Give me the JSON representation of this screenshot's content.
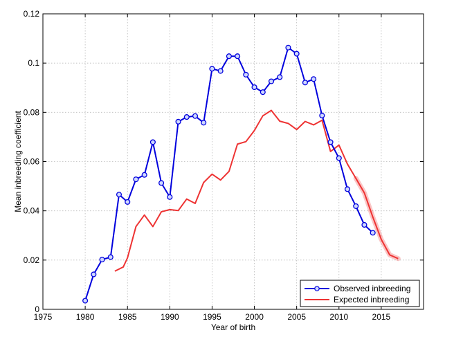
{
  "chart_data": {
    "type": "line",
    "xlabel": "Year of birth",
    "ylabel": "Mean inbreeding coefficient",
    "xlim": [
      1975,
      2020
    ],
    "ylim": [
      0,
      0.12
    ],
    "xticks": [
      1975,
      1980,
      1985,
      1990,
      1995,
      2000,
      2005,
      2010,
      2015
    ],
    "yticks": [
      0,
      0.02,
      0.04,
      0.06,
      0.08,
      0.1,
      0.12
    ],
    "ytick_labels": [
      "0",
      "0.02",
      "0.04",
      "0.06",
      "0.08",
      "0.1",
      "0.12"
    ],
    "grid": true,
    "legend_position": "bottom-right",
    "series": [
      {
        "name": "Observed inbreeding",
        "color": "#0000dd",
        "marker": "circle",
        "x": [
          1980,
          1981,
          1982,
          1983,
          1984,
          1985,
          1986,
          1987,
          1988,
          1989,
          1990,
          1991,
          1992,
          1993,
          1994,
          1995,
          1996,
          1997,
          1998,
          1999,
          2000,
          2001,
          2002,
          2003,
          2004,
          2005,
          2006,
          2007,
          2008,
          2009,
          2010,
          2011,
          2012,
          2013,
          2014
        ],
        "y": [
          0.0035,
          0.0142,
          0.0202,
          0.0212,
          0.0466,
          0.0436,
          0.0528,
          0.0546,
          0.0679,
          0.0513,
          0.0456,
          0.0762,
          0.0781,
          0.0785,
          0.0758,
          0.0977,
          0.0968,
          0.1028,
          0.1028,
          0.0953,
          0.0902,
          0.0882,
          0.0926,
          0.0943,
          0.1063,
          0.1038,
          0.0921,
          0.0935,
          0.0787,
          0.0679,
          0.0614,
          0.0488,
          0.0419,
          0.0343,
          0.0311
        ]
      },
      {
        "name": "Expected inbreeding",
        "color": "#ee3333",
        "marker": "none",
        "x": [
          1983.5,
          1984.5,
          1985,
          1986,
          1987,
          1988,
          1989,
          1990,
          1991,
          1992,
          1993,
          1994,
          1995,
          1996,
          1997,
          1998,
          1999,
          2000,
          2001,
          2002,
          2003,
          2004,
          2005,
          2006,
          2007,
          2008,
          2009,
          2010,
          2011,
          2012,
          2013,
          2014,
          2015,
          2016,
          2017
        ],
        "y": [
          0.0155,
          0.0172,
          0.0209,
          0.0336,
          0.0383,
          0.0336,
          0.0396,
          0.0405,
          0.0401,
          0.0448,
          0.043,
          0.0515,
          0.0549,
          0.0525,
          0.056,
          0.0671,
          0.0681,
          0.0726,
          0.0786,
          0.0808,
          0.0764,
          0.0755,
          0.073,
          0.0763,
          0.0749,
          0.0768,
          0.0641,
          0.0667,
          0.059,
          0.0532,
          0.0473,
          0.0375,
          0.0284,
          0.0221,
          0.0206
        ]
      }
    ]
  }
}
